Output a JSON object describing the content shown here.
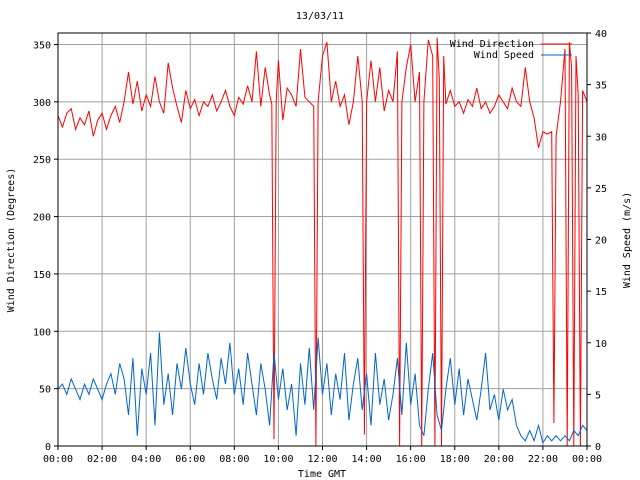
{
  "chart_data": {
    "type": "line",
    "title": "13/03/11",
    "xlabel": "Time GMT",
    "ylabel": "Wind Direction (Degrees)",
    "y2label": "Wind Speed (m/s)",
    "x_ticks": [
      "00:00",
      "02:00",
      "04:00",
      "06:00",
      "08:00",
      "10:00",
      "12:00",
      "14:00",
      "16:00",
      "18:00",
      "20:00",
      "22:00",
      "00:00"
    ],
    "xlim_hours": [
      0,
      24
    ],
    "ylim": [
      0,
      360
    ],
    "y_ticks": [
      0,
      50,
      100,
      150,
      200,
      250,
      300,
      350
    ],
    "y2lim": [
      0,
      40
    ],
    "y2_ticks": [
      0,
      5,
      10,
      15,
      20,
      25,
      30,
      35,
      40
    ],
    "grid": true,
    "legend_position": "top-right",
    "series": [
      {
        "name": "Wind Direction",
        "axis": "left",
        "color": "#ff0000",
        "points": [
          [
            0.0,
            288
          ],
          [
            0.2,
            278
          ],
          [
            0.4,
            290
          ],
          [
            0.6,
            294
          ],
          [
            0.8,
            276
          ],
          [
            1.0,
            286
          ],
          [
            1.2,
            280
          ],
          [
            1.4,
            292
          ],
          [
            1.6,
            270
          ],
          [
            1.8,
            284
          ],
          [
            2.0,
            290
          ],
          [
            2.2,
            276
          ],
          [
            2.4,
            288
          ],
          [
            2.6,
            296
          ],
          [
            2.8,
            282
          ],
          [
            3.0,
            300
          ],
          [
            3.2,
            326
          ],
          [
            3.4,
            298
          ],
          [
            3.6,
            318
          ],
          [
            3.8,
            292
          ],
          [
            4.0,
            306
          ],
          [
            4.2,
            296
          ],
          [
            4.4,
            322
          ],
          [
            4.6,
            300
          ],
          [
            4.8,
            290
          ],
          [
            5.0,
            334
          ],
          [
            5.2,
            312
          ],
          [
            5.4,
            296
          ],
          [
            5.6,
            282
          ],
          [
            5.8,
            310
          ],
          [
            6.0,
            294
          ],
          [
            6.2,
            302
          ],
          [
            6.4,
            288
          ],
          [
            6.6,
            300
          ],
          [
            6.8,
            296
          ],
          [
            7.0,
            306
          ],
          [
            7.2,
            292
          ],
          [
            7.4,
            300
          ],
          [
            7.6,
            310
          ],
          [
            7.8,
            296
          ],
          [
            8.0,
            288
          ],
          [
            8.2,
            304
          ],
          [
            8.4,
            298
          ],
          [
            8.6,
            314
          ],
          [
            8.8,
            300
          ],
          [
            9.0,
            344
          ],
          [
            9.2,
            296
          ],
          [
            9.4,
            330
          ],
          [
            9.6,
            306
          ],
          [
            9.7,
            298
          ],
          [
            9.8,
            6
          ],
          [
            9.9,
            300
          ],
          [
            10.0,
            336
          ],
          [
            10.2,
            284
          ],
          [
            10.4,
            312
          ],
          [
            10.6,
            306
          ],
          [
            10.8,
            296
          ],
          [
            11.0,
            346
          ],
          [
            11.2,
            304
          ],
          [
            11.4,
            300
          ],
          [
            11.6,
            296
          ],
          [
            11.7,
            0
          ],
          [
            11.8,
            300
          ],
          [
            12.0,
            340
          ],
          [
            12.2,
            352
          ],
          [
            12.4,
            300
          ],
          [
            12.6,
            318
          ],
          [
            12.8,
            296
          ],
          [
            13.0,
            306
          ],
          [
            13.2,
            280
          ],
          [
            13.4,
            300
          ],
          [
            13.6,
            340
          ],
          [
            13.8,
            300
          ],
          [
            13.9,
            10
          ],
          [
            14.0,
            300
          ],
          [
            14.2,
            336
          ],
          [
            14.4,
            300
          ],
          [
            14.6,
            330
          ],
          [
            14.8,
            292
          ],
          [
            15.0,
            310
          ],
          [
            15.2,
            300
          ],
          [
            15.4,
            344
          ],
          [
            15.5,
            0
          ],
          [
            15.6,
            300
          ],
          [
            15.8,
            330
          ],
          [
            16.0,
            350
          ],
          [
            16.2,
            300
          ],
          [
            16.4,
            326
          ],
          [
            16.5,
            0
          ],
          [
            16.6,
            300
          ],
          [
            16.8,
            354
          ],
          [
            17.0,
            340
          ],
          [
            17.1,
            0
          ],
          [
            17.2,
            356
          ],
          [
            17.3,
            320
          ],
          [
            17.4,
            0
          ],
          [
            17.5,
            340
          ],
          [
            17.6,
            298
          ],
          [
            17.8,
            310
          ],
          [
            18.0,
            296
          ],
          [
            18.2,
            300
          ],
          [
            18.4,
            290
          ],
          [
            18.6,
            302
          ],
          [
            18.8,
            296
          ],
          [
            19.0,
            312
          ],
          [
            19.2,
            294
          ],
          [
            19.4,
            300
          ],
          [
            19.6,
            290
          ],
          [
            19.8,
            296
          ],
          [
            20.0,
            306
          ],
          [
            20.2,
            300
          ],
          [
            20.4,
            294
          ],
          [
            20.6,
            312
          ],
          [
            20.8,
            300
          ],
          [
            21.0,
            296
          ],
          [
            21.2,
            330
          ],
          [
            21.4,
            300
          ],
          [
            21.6,
            286
          ],
          [
            21.8,
            260
          ],
          [
            22.0,
            274
          ],
          [
            22.2,
            272
          ],
          [
            22.4,
            274
          ],
          [
            22.5,
            20
          ],
          [
            22.6,
            270
          ],
          [
            22.8,
            300
          ],
          [
            23.0,
            346
          ],
          [
            23.1,
            0
          ],
          [
            23.2,
            352
          ],
          [
            23.3,
            330
          ],
          [
            23.4,
            0
          ],
          [
            23.5,
            340
          ],
          [
            23.6,
            306
          ],
          [
            23.7,
            0
          ],
          [
            23.8,
            310
          ],
          [
            24.0,
            300
          ]
        ]
      },
      {
        "name": "Wind Speed",
        "axis": "right",
        "color": "#0066cc",
        "points": [
          [
            0.0,
            5.5
          ],
          [
            0.2,
            6.0
          ],
          [
            0.4,
            5.0
          ],
          [
            0.6,
            6.5
          ],
          [
            0.8,
            5.5
          ],
          [
            1.0,
            4.5
          ],
          [
            1.2,
            6.0
          ],
          [
            1.4,
            5.0
          ],
          [
            1.6,
            6.5
          ],
          [
            1.8,
            5.5
          ],
          [
            2.0,
            4.5
          ],
          [
            2.2,
            6.0
          ],
          [
            2.4,
            7.0
          ],
          [
            2.6,
            5.0
          ],
          [
            2.8,
            8.0
          ],
          [
            3.0,
            6.5
          ],
          [
            3.2,
            3.0
          ],
          [
            3.4,
            8.5
          ],
          [
            3.6,
            1.0
          ],
          [
            3.8,
            7.5
          ],
          [
            4.0,
            5.0
          ],
          [
            4.2,
            9.0
          ],
          [
            4.4,
            2.0
          ],
          [
            4.6,
            11.0
          ],
          [
            4.8,
            4.0
          ],
          [
            5.0,
            7.0
          ],
          [
            5.2,
            3.0
          ],
          [
            5.4,
            8.0
          ],
          [
            5.6,
            5.5
          ],
          [
            5.8,
            9.5
          ],
          [
            6.0,
            6.0
          ],
          [
            6.2,
            4.0
          ],
          [
            6.4,
            8.0
          ],
          [
            6.6,
            5.0
          ],
          [
            6.8,
            9.0
          ],
          [
            7.0,
            6.5
          ],
          [
            7.2,
            4.5
          ],
          [
            7.4,
            8.5
          ],
          [
            7.6,
            6.0
          ],
          [
            7.8,
            10.0
          ],
          [
            8.0,
            5.0
          ],
          [
            8.2,
            7.5
          ],
          [
            8.4,
            4.0
          ],
          [
            8.6,
            9.0
          ],
          [
            8.8,
            6.0
          ],
          [
            9.0,
            3.0
          ],
          [
            9.2,
            8.0
          ],
          [
            9.4,
            5.5
          ],
          [
            9.6,
            2.0
          ],
          [
            9.8,
            9.0
          ],
          [
            10.0,
            4.5
          ],
          [
            10.2,
            7.5
          ],
          [
            10.4,
            3.5
          ],
          [
            10.6,
            6.0
          ],
          [
            10.8,
            1.0
          ],
          [
            11.0,
            8.0
          ],
          [
            11.2,
            4.0
          ],
          [
            11.4,
            9.5
          ],
          [
            11.6,
            3.5
          ],
          [
            11.8,
            10.5
          ],
          [
            12.0,
            5.0
          ],
          [
            12.2,
            8.0
          ],
          [
            12.4,
            3.0
          ],
          [
            12.6,
            7.0
          ],
          [
            12.8,
            4.5
          ],
          [
            13.0,
            9.0
          ],
          [
            13.2,
            2.5
          ],
          [
            13.4,
            6.0
          ],
          [
            13.6,
            8.5
          ],
          [
            13.8,
            3.5
          ],
          [
            14.0,
            7.0
          ],
          [
            14.2,
            2.0
          ],
          [
            14.4,
            9.0
          ],
          [
            14.6,
            4.0
          ],
          [
            14.8,
            6.5
          ],
          [
            15.0,
            2.5
          ],
          [
            15.2,
            5.0
          ],
          [
            15.4,
            8.5
          ],
          [
            15.6,
            3.0
          ],
          [
            15.8,
            10.0
          ],
          [
            16.0,
            4.0
          ],
          [
            16.2,
            7.0
          ],
          [
            16.4,
            2.0
          ],
          [
            16.6,
            1.0
          ],
          [
            16.8,
            5.5
          ],
          [
            17.0,
            9.0
          ],
          [
            17.2,
            3.0
          ],
          [
            17.4,
            1.5
          ],
          [
            17.6,
            5.5
          ],
          [
            17.8,
            8.5
          ],
          [
            18.0,
            4.0
          ],
          [
            18.2,
            7.5
          ],
          [
            18.4,
            3.0
          ],
          [
            18.6,
            6.5
          ],
          [
            18.8,
            4.5
          ],
          [
            19.0,
            2.5
          ],
          [
            19.2,
            5.5
          ],
          [
            19.4,
            9.0
          ],
          [
            19.6,
            3.5
          ],
          [
            19.8,
            5.0
          ],
          [
            20.0,
            2.5
          ],
          [
            20.2,
            5.5
          ],
          [
            20.4,
            3.5
          ],
          [
            20.6,
            4.5
          ],
          [
            20.8,
            2.0
          ],
          [
            21.0,
            1.0
          ],
          [
            21.2,
            0.5
          ],
          [
            21.4,
            1.5
          ],
          [
            21.6,
            0.5
          ],
          [
            21.8,
            2.0
          ],
          [
            22.0,
            0.3
          ],
          [
            22.2,
            1.0
          ],
          [
            22.4,
            0.5
          ],
          [
            22.6,
            1.0
          ],
          [
            22.8,
            0.5
          ],
          [
            23.0,
            1.0
          ],
          [
            23.2,
            0.5
          ],
          [
            23.4,
            1.5
          ],
          [
            23.6,
            1.0
          ],
          [
            23.8,
            2.0
          ],
          [
            24.0,
            1.5
          ]
        ]
      }
    ]
  }
}
